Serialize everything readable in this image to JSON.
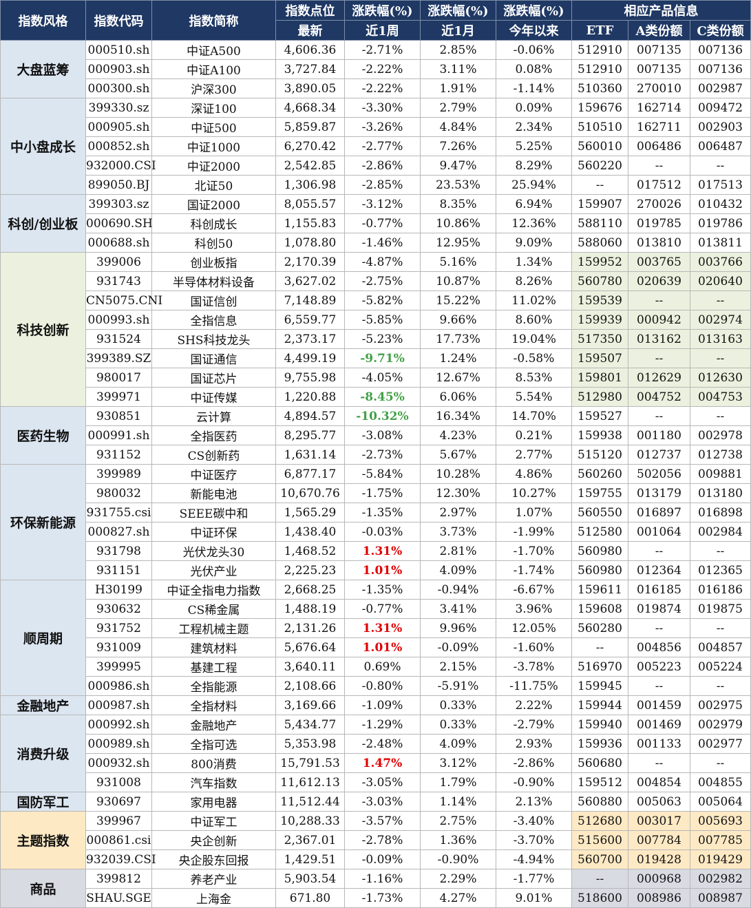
{
  "header": {
    "style": "指数风格",
    "code": "指数代码",
    "name": "指数简称",
    "points": "指数点位",
    "chg1": "涨跌幅(%)",
    "chg2": "涨跌幅(%)",
    "chg3": "涨跌幅(%)",
    "product": "相应产品信息",
    "latest": "最新",
    "week": "近1周",
    "month": "近1月",
    "ytd": "今年以来",
    "etf": "ETF",
    "a_share": "A类份额",
    "c_share": "C类份额"
  },
  "groups": [
    {
      "name": "大盘蓝筹",
      "bg": "#dce6f1",
      "prodbg": "#ffffff",
      "rows": [
        [
          "000510.sh",
          "中证A500",
          "4,606.36",
          "-2.71%",
          "2.85%",
          "-0.06%",
          "512910",
          "007135",
          "007136"
        ],
        [
          "000903.sh",
          "中证A100",
          "3,727.84",
          "-2.22%",
          "3.11%",
          "0.08%",
          "512910",
          "007135",
          "007136"
        ],
        [
          "000300.sh",
          "沪深300",
          "3,890.05",
          "-2.22%",
          "1.91%",
          "-1.14%",
          "510360",
          "270010",
          "002987"
        ]
      ]
    },
    {
      "name": "中小盘成长",
      "bg": "#dce6f1",
      "prodbg": "#ffffff",
      "rows": [
        [
          "399330.sz",
          "深证100",
          "4,668.34",
          "-3.30%",
          "2.79%",
          "0.09%",
          "159676",
          "162714",
          "009472"
        ],
        [
          "000905.sh",
          "中证500",
          "5,859.87",
          "-3.26%",
          "4.84%",
          "2.34%",
          "510510",
          "162711",
          "002903"
        ],
        [
          "000852.sh",
          "中证1000",
          "6,270.42",
          "-2.77%",
          "7.26%",
          "5.25%",
          "560010",
          "006486",
          "006487"
        ],
        [
          "932000.CSI",
          "中证2000",
          "2,542.85",
          "-2.86%",
          "9.47%",
          "8.29%",
          "560220",
          "--",
          "--"
        ],
        [
          "899050.BJ",
          "北证50",
          "1,306.98",
          "-2.85%",
          "23.53%",
          "25.94%",
          "--",
          "017512",
          "017513"
        ]
      ]
    },
    {
      "name": "科创/创业板",
      "bg": "#dce6f1",
      "prodbg": "#ffffff",
      "rows": [
        [
          "399303.sz",
          "国证2000",
          "8,055.57",
          "-3.12%",
          "8.35%",
          "6.94%",
          "159907",
          "270026",
          "010432"
        ],
        [
          "000690.SH",
          "科创成长",
          "1,155.83",
          "-0.77%",
          "10.86%",
          "12.36%",
          "588110",
          "019785",
          "019786"
        ],
        [
          "000688.sh",
          "科创50",
          "1,078.80",
          "-1.46%",
          "12.95%",
          "9.09%",
          "588060",
          "013810",
          "013811"
        ]
      ]
    },
    {
      "name": "科技创新",
      "bg": "#ebf1de",
      "prodbg": "#ebf1de",
      "rows": [
        [
          "399006",
          "创业板指",
          "2,170.39",
          "-4.87%",
          "5.16%",
          "1.34%",
          "159952",
          "003765",
          "003766"
        ],
        [
          "931743",
          "半导体材料设备",
          "3,627.02",
          "-2.75%",
          "10.87%",
          "8.26%",
          "560780",
          "020639",
          "020640"
        ],
        [
          "CN5075.CNI",
          "国证信创",
          "7,148.89",
          "-5.82%",
          "15.22%",
          "11.02%",
          "159539",
          "--",
          "--"
        ],
        [
          "000993.sh",
          "全指信息",
          "6,559.77",
          "-5.85%",
          "9.66%",
          "8.60%",
          "159939",
          "000942",
          "002974"
        ],
        [
          "931524",
          "SHS科技龙头",
          "2,373.17",
          "-5.23%",
          "17.73%",
          "19.04%",
          "517350",
          "013162",
          "013163"
        ],
        [
          "399389.SZ",
          "国证通信",
          "4,499.19",
          "-9.71%",
          "1.24%",
          "-0.58%",
          "159507",
          "--",
          "--"
        ],
        [
          "980017",
          "国证芯片",
          "9,755.98",
          "-4.05%",
          "12.67%",
          "8.53%",
          "159801",
          "012629",
          "012630"
        ],
        [
          "399971",
          "中证传媒",
          "1,220.88",
          "-8.45%",
          "6.06%",
          "5.54%",
          "512980",
          "004752",
          "004753"
        ]
      ]
    },
    {
      "name": "医药生物",
      "bg": "#dce6f1",
      "prodbg": "#ffffff",
      "rows": [
        [
          "930851",
          "云计算",
          "4,894.57",
          "-10.32%",
          "16.34%",
          "14.70%",
          "159527",
          "--",
          "--"
        ],
        [
          "000991.sh",
          "全指医药",
          "8,295.77",
          "-3.08%",
          "4.23%",
          "0.21%",
          "159938",
          "001180",
          "002978"
        ],
        [
          "931152",
          "CS创新药",
          "1,631.14",
          "-2.73%",
          "5.67%",
          "2.77%",
          "515120",
          "012737",
          "012738"
        ]
      ]
    },
    {
      "name": "环保新能源",
      "bg": "#dce6f1",
      "prodbg": "#ffffff",
      "rows": [
        [
          "399989",
          "中证医疗",
          "6,877.17",
          "-5.84%",
          "10.28%",
          "4.86%",
          "560260",
          "502056",
          "009881"
        ],
        [
          "980032",
          "新能电池",
          "10,670.76",
          "-1.75%",
          "12.30%",
          "10.27%",
          "159755",
          "013179",
          "013180"
        ],
        [
          "931755.csi",
          "SEEE碳中和",
          "1,565.29",
          "-1.35%",
          "2.97%",
          "1.07%",
          "560550",
          "016897",
          "016898"
        ],
        [
          "000827.sh",
          "中证环保",
          "1,438.40",
          "-0.03%",
          "3.73%",
          "-1.99%",
          "512580",
          "001064",
          "002984"
        ],
        [
          "931798",
          "光伏龙头30",
          "1,468.52",
          "1.31%",
          "2.81%",
          "-1.70%",
          "560980",
          "--",
          "--"
        ],
        [
          "931151",
          "光伏产业",
          "2,225.23",
          "1.01%",
          "4.09%",
          "-1.74%",
          "560980",
          "012364",
          "012365"
        ]
      ]
    },
    {
      "name": "顺周期",
      "bg": "#dce6f1",
      "prodbg": "#ffffff",
      "rows": [
        [
          "H30199",
          "中证全指电力指数",
          "2,668.25",
          "-1.35%",
          "-0.94%",
          "-6.67%",
          "159611",
          "016185",
          "016186"
        ],
        [
          "930632",
          "CS稀金属",
          "1,488.19",
          "-0.77%",
          "3.41%",
          "3.96%",
          "159608",
          "019874",
          "019875"
        ],
        [
          "931752",
          "工程机械主题",
          "2,131.26",
          "1.31%",
          "9.96%",
          "12.05%",
          "560280",
          "--",
          "--"
        ],
        [
          "931009",
          "建筑材料",
          "5,676.64",
          "1.01%",
          "-0.09%",
          "-1.60%",
          "--",
          "004856",
          "004857"
        ],
        [
          "399995",
          "基建工程",
          "3,640.11",
          "0.69%",
          "2.15%",
          "-3.78%",
          "516970",
          "005223",
          "005224"
        ],
        [
          "000986.sh",
          "全指能源",
          "2,108.66",
          "-0.80%",
          "-5.91%",
          "-11.75%",
          "159945",
          "--",
          "--"
        ]
      ]
    },
    {
      "name": "金融地产",
      "bg": "#dce6f1",
      "prodbg": "#ffffff",
      "rows": [
        [
          "000987.sh",
          "全指材料",
          "3,169.66",
          "-1.09%",
          "0.33%",
          "2.22%",
          "159944",
          "001459",
          "002975"
        ]
      ]
    },
    {
      "name": "消费升级",
      "bg": "#dce6f1",
      "prodbg": "#ffffff",
      "rows": [
        [
          "000992.sh",
          "金融地产",
          "5,434.77",
          "-1.29%",
          "0.33%",
          "-2.79%",
          "159940",
          "001469",
          "002979"
        ],
        [
          "000989.sh",
          "全指可选",
          "5,353.98",
          "-2.48%",
          "4.09%",
          "2.93%",
          "159936",
          "001133",
          "002977"
        ],
        [
          "000932.sh",
          "800消费",
          "15,791.53",
          "1.47%",
          "3.12%",
          "-2.86%",
          "560680",
          "--",
          "--"
        ],
        [
          "931008",
          "汽车指数",
          "11,612.13",
          "-3.05%",
          "1.79%",
          "-0.90%",
          "159512",
          "004854",
          "004855"
        ]
      ]
    },
    {
      "name": "国防军工",
      "bg": "#dce6f1",
      "prodbg": "#ffffff",
      "rows": [
        [
          "930697",
          "家用电器",
          "11,512.44",
          "-3.03%",
          "1.14%",
          "2.13%",
          "560880",
          "005063",
          "005064"
        ]
      ]
    },
    {
      "name": "主题指数",
      "bg": "#fde9c4",
      "prodbg": "#fde9c4",
      "rows": [
        [
          "399967",
          "中证军工",
          "10,288.33",
          "-3.57%",
          "2.75%",
          "-3.40%",
          "512680",
          "003017",
          "005693"
        ],
        [
          "000861.csi",
          "央企创新",
          "2,367.01",
          "-2.78%",
          "1.36%",
          "-3.70%",
          "515600",
          "007784",
          "007785"
        ],
        [
          "932039.CSI",
          "央企股东回报",
          "1,429.51",
          "-0.09%",
          "-0.90%",
          "-4.94%",
          "560700",
          "019428",
          "019429"
        ]
      ]
    },
    {
      "name": "商品",
      "bg": "#d9dbe3",
      "prodbg": "#d9dbe3",
      "rows": [
        [
          "399812",
          "养老产业",
          "5,903.54",
          "-1.16%",
          "2.29%",
          "-1.77%",
          "--",
          "000968",
          "002982"
        ],
        [
          "SHAU.SGE",
          "上海金",
          "671.80",
          "-1.73%",
          "4.27%",
          "9.01%",
          "518600",
          "008986",
          "008987"
        ]
      ]
    }
  ],
  "colors": {
    "header_bg": "#1f3864",
    "header_text": "#ffffff",
    "positive": "#e00000",
    "negative_highlight": "#43a047"
  }
}
